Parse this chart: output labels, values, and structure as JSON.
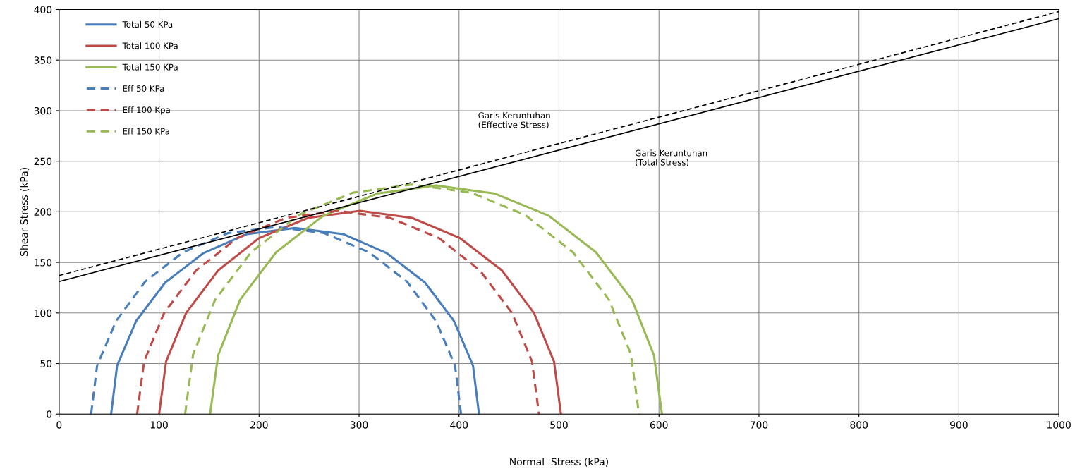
{
  "chart_data": {
    "type": "line",
    "xlabel": "Normal  Stress (kPa)",
    "ylabel": "Shear Stress (kPa)",
    "xlim": [
      0,
      1000
    ],
    "ylim": [
      0,
      400
    ],
    "xticks": [
      0,
      100,
      200,
      300,
      400,
      500,
      600,
      700,
      800,
      900,
      1000
    ],
    "yticks": [
      0,
      50,
      100,
      150,
      200,
      250,
      300,
      350,
      400
    ],
    "grid": true,
    "legend": "top left",
    "marker": "none",
    "series": [
      {
        "name": "Total 50 KPa",
        "color": "#4a7ebb",
        "line_style": "solid",
        "x": [
          52,
          58,
          77,
          106,
          144,
          188,
          236,
          284,
          328,
          366,
          395,
          414,
          420
        ],
        "values": [
          0,
          48,
          92,
          130,
          159,
          178,
          184,
          178,
          159,
          130,
          92,
          48,
          0
        ]
      },
      {
        "name": "Total 100 KPa",
        "color": "#be4b48",
        "line_style": "solid",
        "x": [
          100,
          107,
          127,
          159,
          200,
          249,
          301,
          353,
          401,
          443,
          475,
          495,
          502
        ],
        "values": [
          0,
          52,
          100,
          142,
          174,
          194,
          201,
          194,
          174,
          142,
          100,
          52,
          0
        ]
      },
      {
        "name": "Total 150 KPa",
        "color": "#98b954",
        "line_style": "solid",
        "x": [
          151,
          159,
          181,
          217,
          264,
          318,
          377,
          436,
          490,
          537,
          573,
          595,
          603
        ],
        "values": [
          0,
          58,
          113,
          160,
          196,
          218,
          226,
          218,
          196,
          160,
          113,
          58,
          0
        ]
      },
      {
        "name": "Eff 50 KPa",
        "color": "#4a7ebb",
        "line_style": "dashed",
        "x": [
          32,
          38,
          57,
          86,
          124,
          169,
          217,
          265,
          310,
          348,
          377,
          396,
          402
        ],
        "values": [
          0,
          48,
          92,
          131,
          160,
          179,
          185,
          179,
          160,
          131,
          92,
          48,
          0
        ]
      },
      {
        "name": "Eff 100 Kpa",
        "color": "#be4b48",
        "line_style": "dashed",
        "x": [
          78,
          85,
          105,
          137,
          178,
          227,
          279,
          331,
          380,
          421,
          453,
          473,
          480
        ],
        "values": [
          0,
          52,
          100,
          142,
          174,
          194,
          201,
          194,
          174,
          142,
          100,
          52,
          0
        ]
      },
      {
        "name": "Eff 150 KPa",
        "color": "#98b954",
        "line_style": "dashed",
        "x": [
          126,
          134,
          156,
          192,
          240,
          294,
          353,
          412,
          466,
          514,
          550,
          572,
          580
        ],
        "values": [
          0,
          59,
          113,
          160,
          197,
          219,
          227,
          219,
          197,
          160,
          113,
          59,
          0
        ]
      },
      {
        "color": "#000000",
        "line_style": "dashed",
        "x": [
          0,
          1000
        ],
        "values": [
          137,
          398
        ]
      },
      {
        "color": "#000000",
        "line_style": "solid",
        "x": [
          0,
          1000
        ],
        "values": [
          131,
          391
        ]
      }
    ],
    "annotations": [
      "Garis Keruntuhan\n(Effective Stress)",
      "Garis Keruntuhan\n(Total Stress)"
    ]
  }
}
